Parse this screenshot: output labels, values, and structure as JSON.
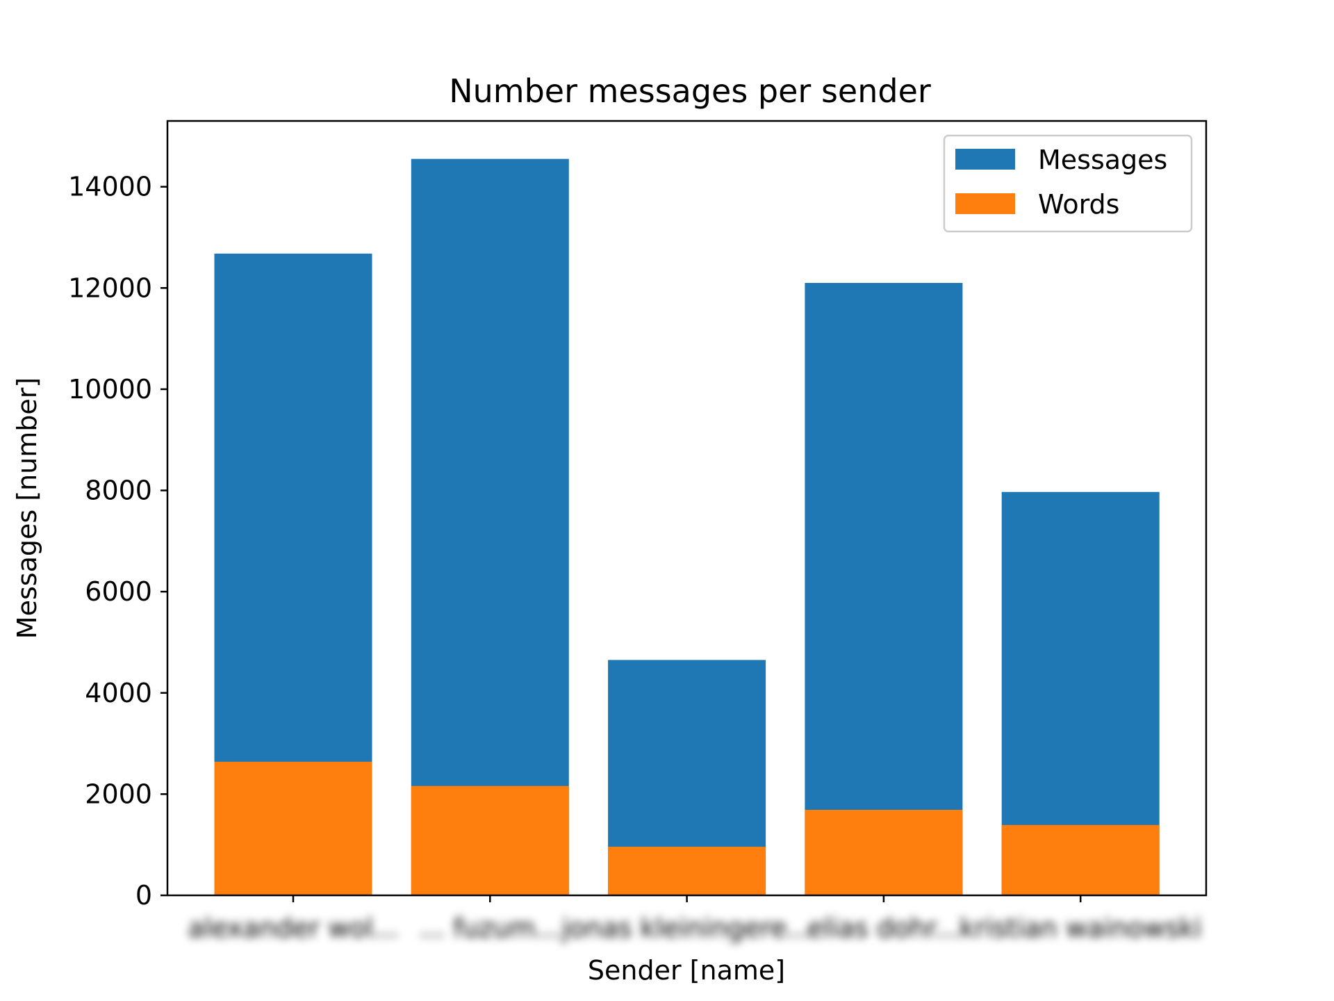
{
  "chart_data": {
    "type": "bar",
    "stacked_overlay": true,
    "title": "Number messages per sender",
    "xlabel": "Sender [name]",
    "ylabel": "Messages [number]",
    "ylim": [
      0,
      15300
    ],
    "yticks": [
      0,
      2000,
      4000,
      6000,
      8000,
      10000,
      12000,
      14000
    ],
    "categories": [
      "alexander wol...",
      "... fuzum...",
      "jonas kleiningere...",
      "elias dohr...",
      "kristian wainowski"
    ],
    "categories_note_blurred": true,
    "series": [
      {
        "name": "Messages",
        "values": [
          12680,
          14550,
          4650,
          12100,
          7970
        ],
        "color": "#1f77b4"
      },
      {
        "name": "Words",
        "values": [
          2640,
          2160,
          960,
          1690,
          1390
        ],
        "color": "#ff7f0e"
      }
    ],
    "legend": {
      "position": "top-right"
    },
    "grid": false
  }
}
